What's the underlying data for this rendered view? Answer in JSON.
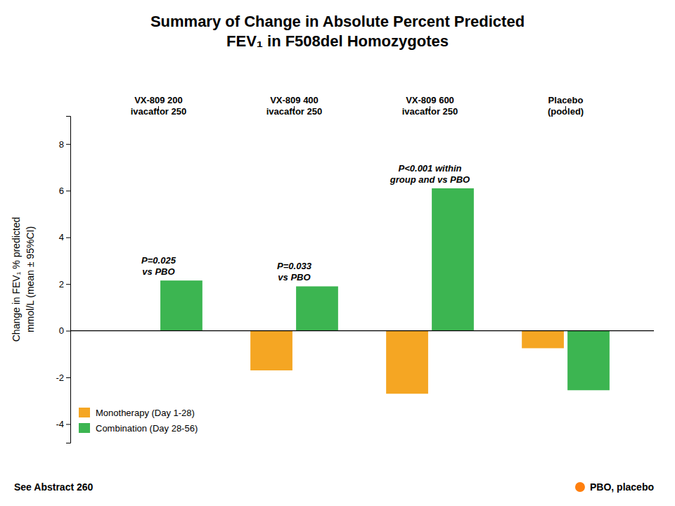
{
  "chart_data": {
    "type": "bar",
    "title": "Summary of Change in Absolute Percent Predicted\nFEV₁ in F508del Homozygotes",
    "y_label": "Change in FEV₁ % predicted\nmmol/L (mean ± 95%CI)",
    "categories": [
      "VX-809 200\nivacaftor 250",
      "VX-809 400\nivacaftor 250",
      "VX-809 600\nivacaftor 250",
      "Placebo\n(pooled)"
    ],
    "series": [
      {
        "name": "Monotherapy (Day 1-28)",
        "color": "#F5A623",
        "values": [
          0.0,
          -1.7,
          -2.7,
          -0.75
        ]
      },
      {
        "name": "Combination (Day 28-56)",
        "color": "#3CB551",
        "values": [
          2.15,
          1.9,
          6.1,
          -2.55
        ]
      }
    ],
    "ylim": [
      -4.8,
      9.2
    ],
    "yticks": [
      -4,
      -2,
      0,
      2,
      4,
      6,
      8
    ],
    "grid": false,
    "legend": "lower left",
    "annotations": [
      "P=0.025\nvs PBO",
      "P=0.033\nvs PBO",
      "P<0.001 within\ngroup and vs PBO"
    ],
    "footnote": "See Abstract 260",
    "abbreviation": "PBO, placebo"
  }
}
